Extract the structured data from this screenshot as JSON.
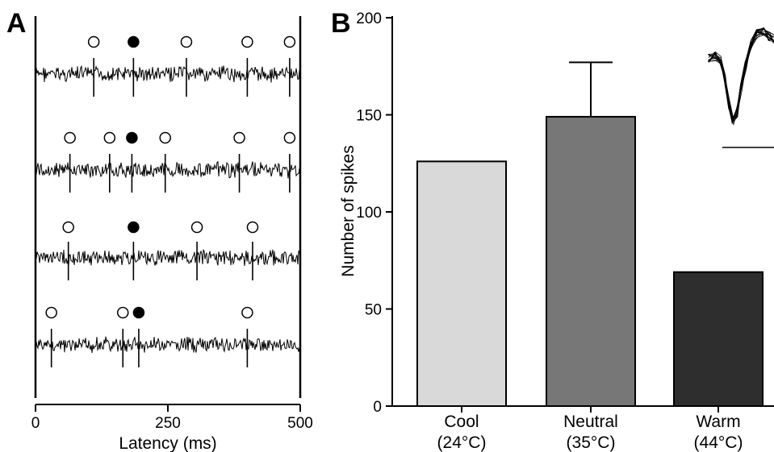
{
  "panels": {
    "a_label": "A",
    "b_label": "B"
  },
  "chart_data": [
    {
      "type": "scatter",
      "panel": "A",
      "xlabel": "Latency (ms)",
      "xlim": [
        0,
        500
      ],
      "xticks": [
        "0",
        "250",
        "500"
      ],
      "grid": false,
      "trials": [
        {
          "open_markers_ms": [
            110,
            285,
            400,
            480
          ],
          "filled_marker_ms": 185
        },
        {
          "open_markers_ms": [
            65,
            140,
            245,
            385,
            480
          ],
          "filled_marker_ms": 182
        },
        {
          "open_markers_ms": [
            62,
            305,
            410
          ],
          "filled_marker_ms": 185
        },
        {
          "open_markers_ms": [
            30,
            165,
            400
          ],
          "filled_marker_ms": 195
        }
      ]
    },
    {
      "type": "bar",
      "panel": "B",
      "ylabel": "Number of spikes",
      "ylim": [
        0,
        200
      ],
      "yticks": [
        "0",
        "50",
        "100",
        "150",
        "200"
      ],
      "categories": [
        {
          "name": "Cool",
          "temp": "(24°C)"
        },
        {
          "name": "Neutral",
          "temp": "(35°C)"
        },
        {
          "name": "Warm",
          "temp": "(44°C)"
        }
      ],
      "values": [
        126,
        149,
        69
      ],
      "error_bars": [
        null,
        28,
        null
      ],
      "colors": [
        "#d9d9d9",
        "#777777",
        "#2e2e2e"
      ],
      "grid": false
    }
  ]
}
